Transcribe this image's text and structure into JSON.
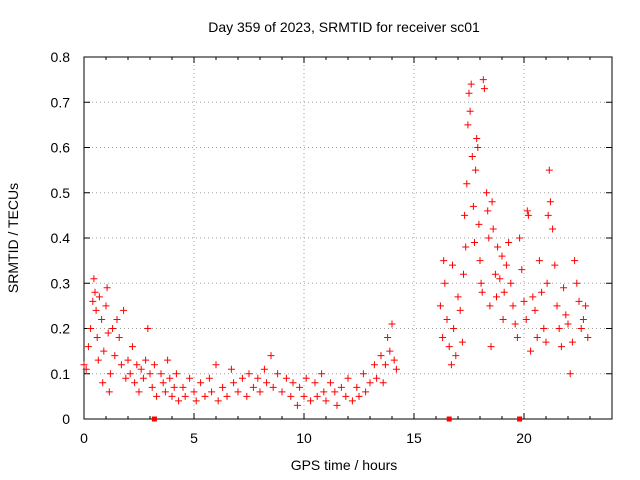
{
  "chart_data": {
    "type": "scatter",
    "title": "Day 359 of 2023, SRMTID for receiver sc01",
    "xlabel": "GPS time / hours",
    "ylabel": "SRMTID / TECUs",
    "xlim": [
      0,
      24
    ],
    "ylim": [
      0,
      0.8
    ],
    "xticks": [
      0,
      5,
      10,
      15,
      20
    ],
    "yticks": [
      0,
      0.1,
      0.2,
      0.3,
      0.4,
      0.5,
      0.6,
      0.7,
      0.8
    ],
    "xtick_labels": [
      "0",
      "5",
      "10",
      "15",
      "20"
    ],
    "ytick_labels": [
      "0",
      "0.1",
      "0.2",
      "0.3",
      "0.4",
      "0.5",
      "0.6",
      "0.7",
      "0.8"
    ],
    "grid": true,
    "marker": "plus",
    "color": "#ff0000",
    "series": [
      {
        "name": "sc01",
        "points": [
          [
            0.0,
            0.12
          ],
          [
            0.1,
            0.11
          ],
          [
            0.2,
            0.16
          ],
          [
            0.3,
            0.2
          ],
          [
            0.4,
            0.26
          ],
          [
            0.45,
            0.31
          ],
          [
            0.5,
            0.28
          ],
          [
            0.55,
            0.24
          ],
          [
            0.6,
            0.18
          ],
          [
            0.65,
            0.13
          ],
          [
            0.7,
            0.27
          ],
          [
            0.8,
            0.22
          ],
          [
            0.85,
            0.08
          ],
          [
            0.9,
            0.15
          ],
          [
            1.0,
            0.25
          ],
          [
            1.05,
            0.29
          ],
          [
            1.1,
            0.19
          ],
          [
            1.15,
            0.06
          ],
          [
            1.2,
            0.1
          ],
          [
            1.3,
            0.2
          ],
          [
            1.4,
            0.14
          ],
          [
            1.5,
            0.22
          ],
          [
            1.6,
            0.18
          ],
          [
            1.7,
            0.12
          ],
          [
            1.8,
            0.24
          ],
          [
            1.9,
            0.09
          ],
          [
            2.0,
            0.13
          ],
          [
            2.1,
            0.1
          ],
          [
            2.2,
            0.16
          ],
          [
            2.3,
            0.08
          ],
          [
            2.4,
            0.12
          ],
          [
            2.5,
            0.06
          ],
          [
            2.6,
            0.11
          ],
          [
            2.7,
            0.09
          ],
          [
            2.8,
            0.13
          ],
          [
            2.9,
            0.2
          ],
          [
            3.0,
            0.1
          ],
          [
            3.1,
            0.07
          ],
          [
            3.2,
            0.12
          ],
          [
            3.3,
            0.05
          ],
          [
            3.5,
            0.1
          ],
          [
            3.6,
            0.08
          ],
          [
            3.7,
            0.06
          ],
          [
            3.8,
            0.13
          ],
          [
            3.9,
            0.09
          ],
          [
            4.0,
            0.05
          ],
          [
            4.1,
            0.07
          ],
          [
            4.2,
            0.1
          ],
          [
            4.3,
            0.04
          ],
          [
            4.5,
            0.07
          ],
          [
            4.6,
            0.05
          ],
          [
            4.8,
            0.09
          ],
          [
            5.0,
            0.06
          ],
          [
            5.1,
            0.04
          ],
          [
            5.3,
            0.08
          ],
          [
            5.5,
            0.05
          ],
          [
            5.7,
            0.09
          ],
          [
            5.8,
            0.06
          ],
          [
            6.0,
            0.12
          ],
          [
            6.1,
            0.04
          ],
          [
            6.3,
            0.07
          ],
          [
            6.5,
            0.05
          ],
          [
            6.7,
            0.11
          ],
          [
            6.8,
            0.08
          ],
          [
            7.0,
            0.06
          ],
          [
            7.2,
            0.09
          ],
          [
            7.4,
            0.05
          ],
          [
            7.5,
            0.1
          ],
          [
            7.7,
            0.07
          ],
          [
            7.9,
            0.09
          ],
          [
            8.0,
            0.06
          ],
          [
            8.2,
            0.11
          ],
          [
            8.3,
            0.08
          ],
          [
            8.5,
            0.14
          ],
          [
            8.6,
            0.07
          ],
          [
            8.8,
            0.1
          ],
          [
            9.0,
            0.06
          ],
          [
            9.2,
            0.09
          ],
          [
            9.4,
            0.05
          ],
          [
            9.5,
            0.08
          ],
          [
            9.7,
            0.03
          ],
          [
            9.8,
            0.07
          ],
          [
            10.0,
            0.05
          ],
          [
            10.1,
            0.09
          ],
          [
            10.3,
            0.04
          ],
          [
            10.5,
            0.08
          ],
          [
            10.6,
            0.05
          ],
          [
            10.8,
            0.1
          ],
          [
            10.9,
            0.06
          ],
          [
            11.0,
            0.04
          ],
          [
            11.2,
            0.08
          ],
          [
            11.4,
            0.06
          ],
          [
            11.5,
            0.03
          ],
          [
            11.7,
            0.07
          ],
          [
            11.9,
            0.05
          ],
          [
            12.0,
            0.09
          ],
          [
            12.2,
            0.04
          ],
          [
            12.4,
            0.07
          ],
          [
            12.5,
            0.05
          ],
          [
            12.7,
            0.1
          ],
          [
            12.8,
            0.06
          ],
          [
            13.0,
            0.08
          ],
          [
            13.2,
            0.12
          ],
          [
            13.3,
            0.09
          ],
          [
            13.5,
            0.14
          ],
          [
            13.6,
            0.08
          ],
          [
            13.7,
            0.12
          ],
          [
            13.8,
            0.18
          ],
          [
            13.9,
            0.15
          ],
          [
            14.0,
            0.21
          ],
          [
            14.1,
            0.13
          ],
          [
            14.2,
            0.11
          ],
          [
            16.2,
            0.25
          ],
          [
            16.3,
            0.18
          ],
          [
            16.35,
            0.35
          ],
          [
            16.4,
            0.3
          ],
          [
            16.5,
            0.22
          ],
          [
            16.6,
            0.16
          ],
          [
            16.7,
            0.12
          ],
          [
            16.75,
            0.34
          ],
          [
            16.8,
            0.2
          ],
          [
            16.9,
            0.14
          ],
          [
            17.0,
            0.27
          ],
          [
            17.1,
            0.24
          ],
          [
            17.2,
            0.17
          ],
          [
            17.25,
            0.32
          ],
          [
            17.3,
            0.45
          ],
          [
            17.35,
            0.38
          ],
          [
            17.4,
            0.52
          ],
          [
            17.45,
            0.65
          ],
          [
            17.5,
            0.72
          ],
          [
            17.55,
            0.68
          ],
          [
            17.6,
            0.74
          ],
          [
            17.65,
            0.58
          ],
          [
            17.7,
            0.47
          ],
          [
            17.75,
            0.39
          ],
          [
            17.8,
            0.55
          ],
          [
            17.85,
            0.62
          ],
          [
            17.9,
            0.6
          ],
          [
            17.95,
            0.43
          ],
          [
            18.0,
            0.35
          ],
          [
            18.05,
            0.3
          ],
          [
            18.1,
            0.28
          ],
          [
            18.15,
            0.75
          ],
          [
            18.2,
            0.73
          ],
          [
            18.3,
            0.5
          ],
          [
            18.35,
            0.46
          ],
          [
            18.4,
            0.4
          ],
          [
            18.45,
            0.25
          ],
          [
            18.5,
            0.16
          ],
          [
            18.55,
            0.48
          ],
          [
            18.6,
            0.42
          ],
          [
            18.7,
            0.32
          ],
          [
            18.75,
            0.27
          ],
          [
            18.8,
            0.38
          ],
          [
            18.9,
            0.31
          ],
          [
            19.0,
            0.36
          ],
          [
            19.05,
            0.22
          ],
          [
            19.1,
            0.28
          ],
          [
            19.2,
            0.34
          ],
          [
            19.3,
            0.39
          ],
          [
            19.4,
            0.3
          ],
          [
            19.5,
            0.25
          ],
          [
            19.6,
            0.21
          ],
          [
            19.7,
            0.18
          ],
          [
            19.8,
            0.4
          ],
          [
            19.9,
            0.33
          ],
          [
            20.0,
            0.26
          ],
          [
            20.1,
            0.22
          ],
          [
            20.15,
            0.46
          ],
          [
            20.2,
            0.45
          ],
          [
            20.3,
            0.15
          ],
          [
            20.4,
            0.27
          ],
          [
            20.5,
            0.24
          ],
          [
            20.6,
            0.18
          ],
          [
            20.7,
            0.35
          ],
          [
            20.8,
            0.28
          ],
          [
            20.9,
            0.2
          ],
          [
            21.0,
            0.17
          ],
          [
            21.05,
            0.3
          ],
          [
            21.1,
            0.45
          ],
          [
            21.15,
            0.55
          ],
          [
            21.2,
            0.48
          ],
          [
            21.3,
            0.42
          ],
          [
            21.4,
            0.34
          ],
          [
            21.5,
            0.25
          ],
          [
            21.6,
            0.2
          ],
          [
            21.7,
            0.16
          ],
          [
            21.8,
            0.29
          ],
          [
            21.9,
            0.23
          ],
          [
            22.0,
            0.21
          ],
          [
            22.1,
            0.1
          ],
          [
            22.2,
            0.17
          ],
          [
            22.3,
            0.35
          ],
          [
            22.4,
            0.3
          ],
          [
            22.5,
            0.26
          ],
          [
            22.6,
            0.2
          ],
          [
            22.7,
            0.22
          ],
          [
            22.8,
            0.25
          ],
          [
            22.9,
            0.18
          ]
        ]
      }
    ],
    "zero_points": [
      3.2,
      16.6,
      19.8
    ]
  }
}
